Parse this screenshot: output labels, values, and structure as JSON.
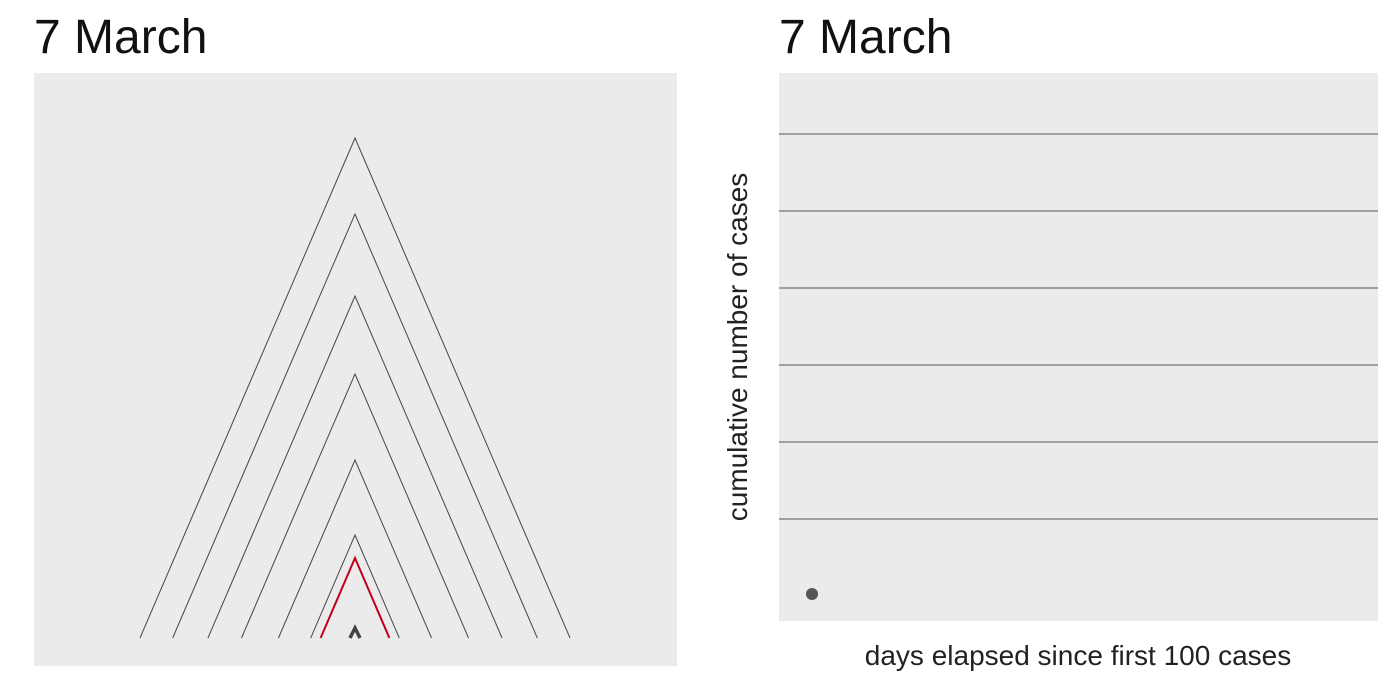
{
  "panels": {
    "left_title": "7 March",
    "right_title": "7 March"
  },
  "colors": {
    "panel_bg": "#ebebeb",
    "line": "#444444",
    "highlight": "#c0001a",
    "point": "#555555"
  },
  "chart_data": [
    {
      "type": "line",
      "title": "7 March",
      "description_kind": "nested chevrons",
      "series": [
        {
          "peak_height": 500
        },
        {
          "peak_height": 424
        },
        {
          "peak_height": 342
        },
        {
          "peak_height": 264
        },
        {
          "peak_height": 178
        },
        {
          "peak_height": 103
        },
        {
          "peak_height": 80,
          "highlighted": true
        },
        {
          "peak_height": 10
        }
      ],
      "grid": false
    },
    {
      "type": "scatter",
      "title": "7 March",
      "xlabel": "days elapsed since first 100 cases",
      "ylabel": "cumulative number of cases",
      "points": [
        {
          "x": 0,
          "y": 0
        }
      ],
      "grid": true,
      "gridlines": 6
    }
  ]
}
